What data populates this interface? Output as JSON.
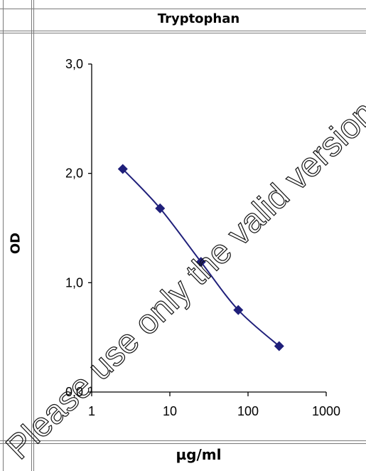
{
  "chart_data": {
    "type": "scatter",
    "title": "Tryptophan",
    "xlabel": "µg/ml",
    "ylabel": "OD",
    "x_scale": "log",
    "xlim": [
      1,
      1000
    ],
    "ylim": [
      0,
      3
    ],
    "x_ticks": [
      1,
      10,
      100,
      1000
    ],
    "x_tick_labels": [
      "1",
      "10",
      "100",
      "1000"
    ],
    "y_ticks": [
      0,
      1,
      2,
      3
    ],
    "y_tick_labels": [
      "0,0",
      "1,0",
      "2,0",
      "3,0"
    ],
    "grid": false,
    "series": [
      {
        "x": [
          2.5,
          7.5,
          25,
          75,
          250
        ],
        "y": [
          2.04,
          1.68,
          1.19,
          0.75,
          0.42
        ],
        "color": "#1f1f7a",
        "marker": "diamond",
        "line": "smooth"
      }
    ]
  },
  "watermark": {
    "text": "Please use only the valid version of"
  }
}
